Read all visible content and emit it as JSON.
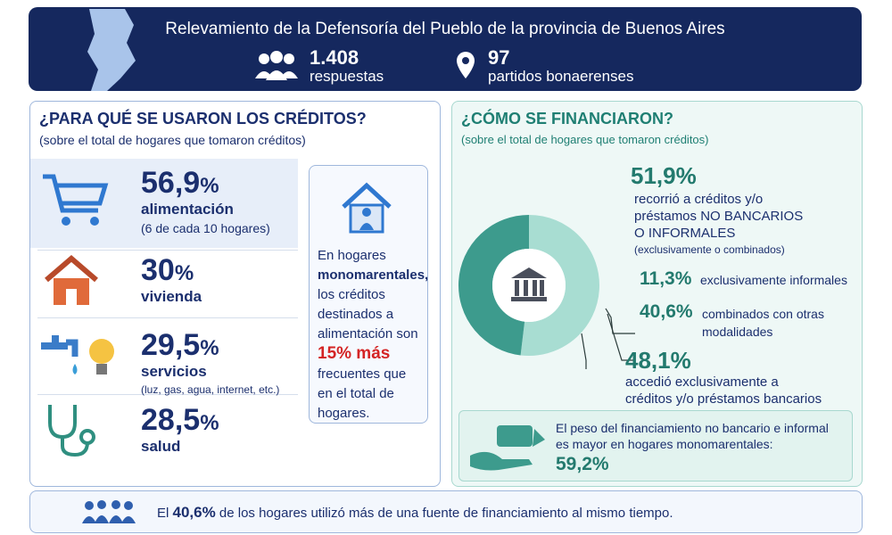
{
  "header": {
    "title": "Relevamiento de la Defensoría del Pueblo de la provincia de Buenos Aires",
    "stats": [
      {
        "value": "1.408",
        "label": "respuestas"
      },
      {
        "value": "97",
        "label": "partidos bonaerenses"
      }
    ]
  },
  "uses": {
    "title": "¿PARA QUÉ SE USARON LOS CRÉDITOS?",
    "subtitle": "(sobre el total de hogares que tomaron créditos)",
    "items": [
      {
        "value": "56,9",
        "unit": "%",
        "label": "alimentación",
        "note": "(6 de cada 10 hogares)"
      },
      {
        "value": "30",
        "unit": "%",
        "label": "vivienda"
      },
      {
        "value": "29,5",
        "unit": "%",
        "label": "servicios",
        "note": "(luz, gas, agua, internet, etc.)"
      },
      {
        "value": "28,5",
        "unit": "%",
        "label": "salud"
      }
    ],
    "callout": [
      "En hogares",
      "monomarentales,",
      "los créditos destinados a alimentación",
      "son",
      "15% más",
      "frecuentes que en el total de hogares."
    ]
  },
  "financing": {
    "title": "¿CÓMO SE FINANCIARON?",
    "subtitle": "(sobre el total de hogares que tomaron créditos)",
    "donut": {
      "values": [
        51.9,
        48.1
      ],
      "colors": [
        "#a8ddd2",
        "#3d9b8d"
      ]
    },
    "non_bank": {
      "value": "51,9%",
      "lines": [
        "recorrió a créditos y/o",
        "préstamos NO BANCARIOS",
        "O INFORMALES"
      ],
      "note": "(exclusivamente o combinados)"
    },
    "breakdown": [
      {
        "value": "11,3%",
        "label": "exclusivamente informales"
      },
      {
        "value": "40,6%",
        "label": "combinados con otras modalidades"
      }
    ],
    "bank": {
      "value": "48,1%",
      "lines": [
        "accedió exclusivamente a",
        "créditos y/o préstamos bancarios"
      ]
    },
    "highlight": {
      "text": "El peso del financiamiento no bancario e informal es mayor en hogares monomarentales:",
      "value": "59,2%"
    }
  },
  "footer": [
    "El",
    "40,6%",
    "de los hogares utilizó más de una fuente de financiamiento al mismo tiempo."
  ]
}
